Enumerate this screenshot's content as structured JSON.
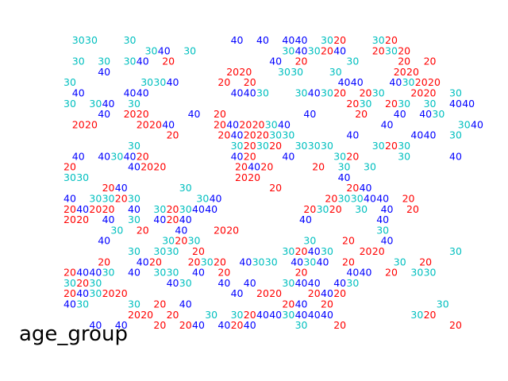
{
  "chart_data": {
    "type": "scatter",
    "caption": "age_group",
    "grid": false,
    "axes_visible": false,
    "legend": "none",
    "colors": {
      "20": "#ff0000",
      "30": "#00bfbf",
      "40": "#0000ff"
    },
    "categories": [
      "20",
      "30",
      "40"
    ],
    "rows": [
      "  30 30       30                       40    40    40 40    30 20       30 20",
      "                   30 40    30                     30 40 30 20 40       20 30 20",
      "  30    30    30 40    20                       40    20          30          20    20",
      "        40                            20 20       30 30       30             20 20",
      "30                30 30 40          20    20                    40 40       40 30 20 20",
      "  40          40 40                    40 40 30       30 40 30 20    20 30       20 20    30",
      "30    30 40    30                                                 20 30    20 30    30    40 40",
      "        40    20 20          40    20                   40          20       40    40 30",
      "  20 20          20 20 40          20 40 20 20 30 40                      40                30 40",
      "                        20          20 40 20 20 30 30             40             40 40    30",
      "               30                      30 20 30 20    30 30 30          30 20 30",
      "  40    40 30 40 20                    40 20       40          30 20          30          40",
      "20             40 20 20                 20 40 20          20    30    30",
      "30 30                                   20 20                   40",
      "         20 40             30                   20                20 40",
      "40    30 30 20 30              30 40                         20 30 30 40 40    20",
      "20 40 20 20    40    30 20 30 40 40                     20 30 20    30    40    20",
      "20 20    40    30    40 20 40                          40                40",
      "           30    20       40       20 20                                 30",
      "        40             30 20 30                         30       20       40",
      "               30    30 30    20                   30 20 40 30       20 20                30",
      "        20       40 20       20 30 20    40 30 30    40 30 40    20          30    20",
      "20 40 40 30    40    30 30    40    20                20          40 40    20    30 30",
      "30 20 30                40 30       40    40       30 40 40    40 30",
      "20 40 30 20 20                         40    20 20       20 40 20",
      "40 30          30    20    40                      20 40    20                         30",
      "               20 20    20       30    30 20 40 40 30 40 40 40                   30 20",
      "      40    40       20    20 40    40 20 40          30       20                         20"
    ]
  }
}
